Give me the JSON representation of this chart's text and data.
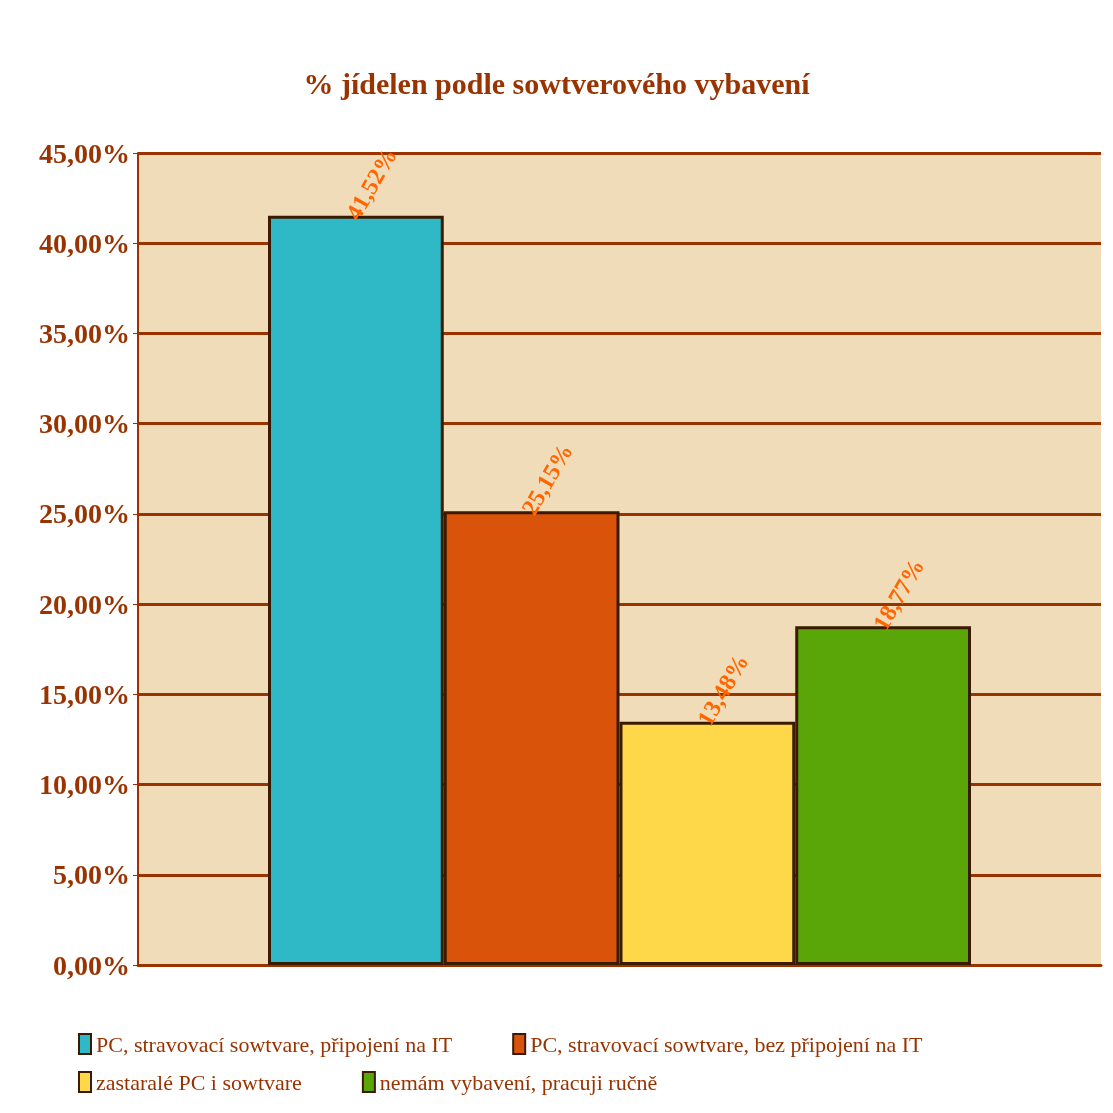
{
  "chart_data": {
    "type": "bar",
    "title": "% jídelen podle sowtverového vybavení",
    "categories": [
      null
    ],
    "series": [
      {
        "name": "PC, stravovací sowtvare, připojení na IT",
        "color": "#2fb8c6",
        "values": [
          41.52
        ],
        "value_labels": [
          "41,52%"
        ]
      },
      {
        "name": "PC, stravovací sowtvare, bez připojení na IT",
        "color": "#d9530a",
        "values": [
          25.15
        ],
        "value_labels": [
          "25,15%"
        ]
      },
      {
        "name": "zastaralé PC i sowtvare",
        "color": "#ffd84a",
        "values": [
          13.48
        ],
        "value_labels": [
          "13,48%"
        ]
      },
      {
        "name": "nemám vybavení, pracuji ručně",
        "color": "#5aa608",
        "values": [
          18.77
        ],
        "value_labels": [
          "18,77%"
        ]
      }
    ],
    "ylim": [
      0,
      45
    ],
    "yticks": [
      {
        "value": 0,
        "label": "0,00%"
      },
      {
        "value": 5,
        "label": "5,00%"
      },
      {
        "value": 10,
        "label": "10,00%"
      },
      {
        "value": 15,
        "label": "15,00%"
      },
      {
        "value": 20,
        "label": "20,00%"
      },
      {
        "value": 25,
        "label": "25,00%"
      },
      {
        "value": 30,
        "label": "30,00%"
      },
      {
        "value": 35,
        "label": "35,00%"
      },
      {
        "value": 40,
        "label": "40,00%"
      },
      {
        "value": 45,
        "label": "45,00%"
      }
    ],
    "grid": "y",
    "legend": "bottom"
  }
}
